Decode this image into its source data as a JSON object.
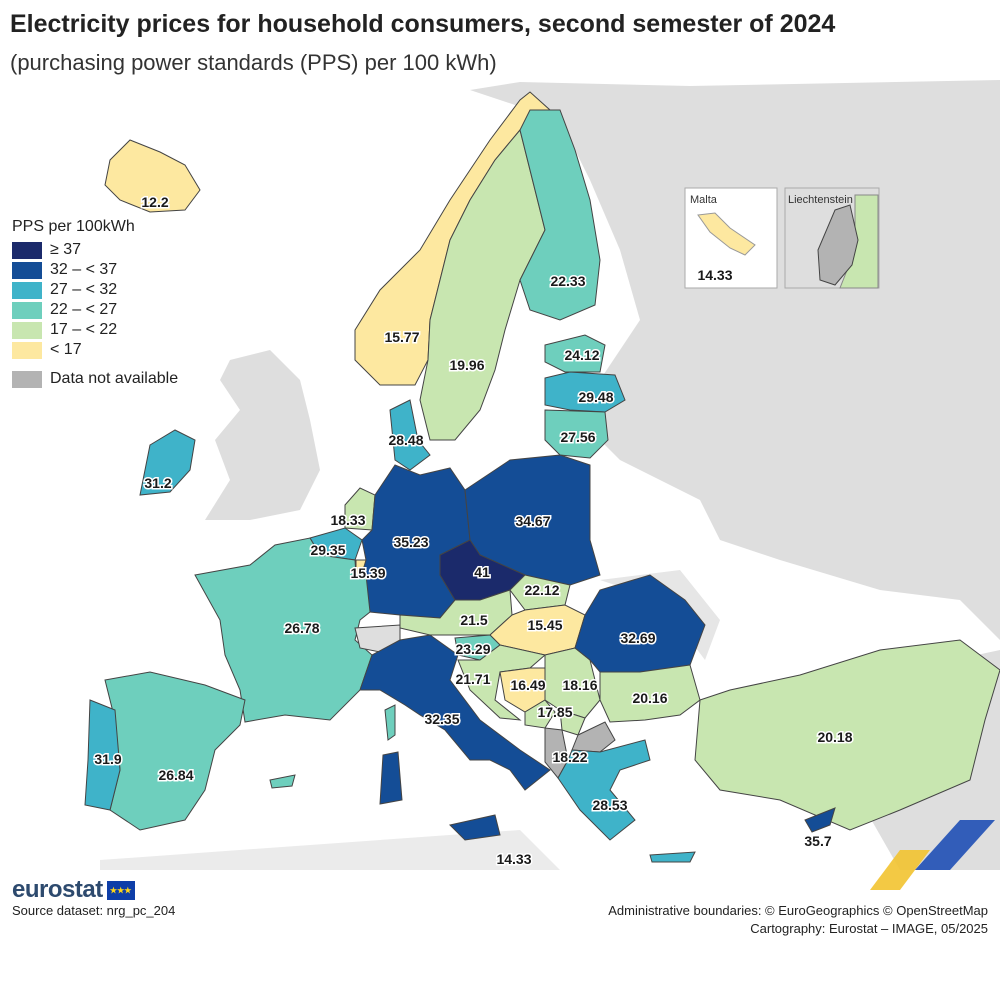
{
  "title": "Electricity prices for household consumers, second semester of 2024",
  "subtitle": "(purchasing power standards (PPS) per 100 kWh)",
  "legend": {
    "title": "PPS per 100kWh",
    "classes": [
      {
        "label": "≥ 37",
        "color": "#1b2a6b"
      },
      {
        "label": "32 – < 37",
        "color": "#144d96"
      },
      {
        "label": "27 – < 32",
        "color": "#3fb3c9"
      },
      {
        "label": "22 – < 27",
        "color": "#6ecfbd"
      },
      {
        "label": "17 – < 22",
        "color": "#c8e6b0"
      },
      {
        "label": "< 17",
        "color": "#fde8a0"
      }
    ],
    "na_label": "Data not available",
    "na_color": "#b3b3b3"
  },
  "colors": {
    "sea": "#ffffff",
    "non_eu_land": "#dedede",
    "border": "#444444"
  },
  "insets": {
    "malta": {
      "title": "Malta",
      "value": "14.33"
    },
    "liechtenstein": {
      "title": "Liechtenstein"
    }
  },
  "countries": [
    {
      "name": "Iceland",
      "value": "12.2"
    },
    {
      "name": "Norway",
      "value": "15.77"
    },
    {
      "name": "Sweden",
      "value": "19.96"
    },
    {
      "name": "Finland",
      "value": "22.33"
    },
    {
      "name": "Estonia",
      "value": "24.12"
    },
    {
      "name": "Latvia",
      "value": "29.48"
    },
    {
      "name": "Lithuania",
      "value": "27.56"
    },
    {
      "name": "Denmark",
      "value": "28.48"
    },
    {
      "name": "Ireland",
      "value": "31.2"
    },
    {
      "name": "Netherlands",
      "value": "18.33"
    },
    {
      "name": "Belgium",
      "value": "29.35"
    },
    {
      "name": "Luxembourg",
      "value": "15.39"
    },
    {
      "name": "Germany",
      "value": "35.23"
    },
    {
      "name": "Poland",
      "value": "34.67"
    },
    {
      "name": "Czechia",
      "value": "41"
    },
    {
      "name": "Slovakia",
      "value": "22.12"
    },
    {
      "name": "Hungary",
      "value": "15.45"
    },
    {
      "name": "Austria",
      "value": "21.5"
    },
    {
      "name": "Slovenia",
      "value": "23.29"
    },
    {
      "name": "Croatia",
      "value": "21.71"
    },
    {
      "name": "Bosnia and Herzegovina",
      "value": "16.49"
    },
    {
      "name": "Serbia",
      "value": "18.16"
    },
    {
      "name": "Montenegro",
      "value": "17.85"
    },
    {
      "name": "Romania",
      "value": "32.69"
    },
    {
      "name": "Bulgaria",
      "value": "20.16"
    },
    {
      "name": "North Macedonia",
      "value": "18.22"
    },
    {
      "name": "Greece",
      "value": "28.53"
    },
    {
      "name": "Türkiye",
      "value": "20.18"
    },
    {
      "name": "Cyprus",
      "value": "35.7"
    },
    {
      "name": "France",
      "value": "26.78"
    },
    {
      "name": "Spain",
      "value": "26.84"
    },
    {
      "name": "Portugal",
      "value": "31.9"
    },
    {
      "name": "Italy",
      "value": "32.35"
    },
    {
      "name": "Malta",
      "value": "14.33"
    }
  ],
  "logo": {
    "text": "eurostat"
  },
  "source": "Source dataset: nrg_pc_204",
  "boundaries": "Administrative boundaries: © EuroGeographics © OpenStreetMap",
  "cartography": "Cartography: Eurostat – IMAGE, 05/2025"
}
